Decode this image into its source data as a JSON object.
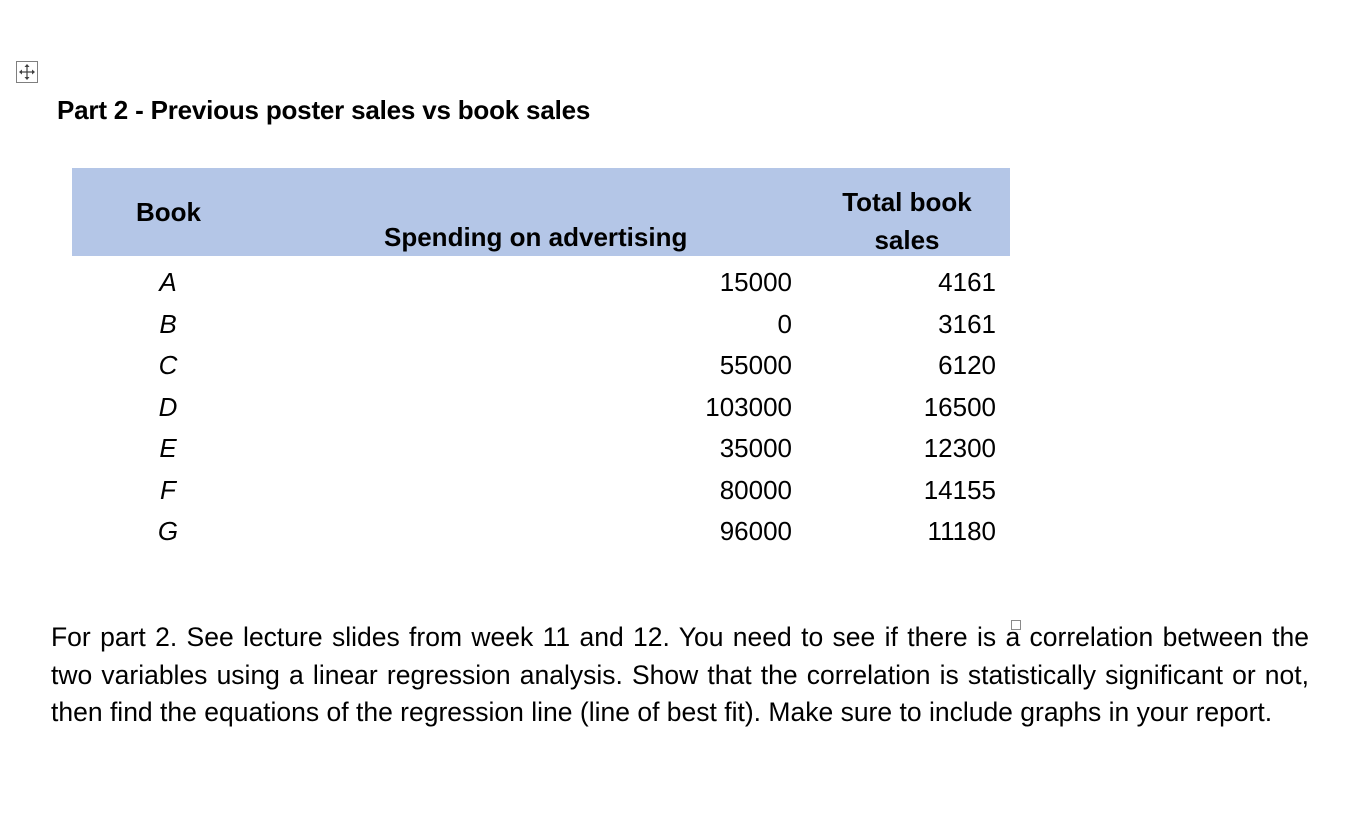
{
  "section": {
    "heading": "Part 2 - Previous poster sales vs book sales"
  },
  "table": {
    "headers": {
      "book": "Book",
      "spending": "Spending on advertising",
      "total": "Total book sales"
    },
    "rows": [
      {
        "book": "A",
        "spending": "15000",
        "total": "4161"
      },
      {
        "book": "B",
        "spending": "0",
        "total": "3161"
      },
      {
        "book": "C",
        "spending": "55000",
        "total": "6120"
      },
      {
        "book": "D",
        "spending": "103000",
        "total": "16500"
      },
      {
        "book": "E",
        "spending": "35000",
        "total": "12300"
      },
      {
        "book": "F",
        "spending": "80000",
        "total": "14155"
      },
      {
        "book": "G",
        "spending": "96000",
        "total": "11180"
      }
    ],
    "header_color": "#b4c6e7"
  },
  "instructions": {
    "text": "For part 2. See lecture slides from week 11 and 12. You need to see if there is a correlation between the two variables using a linear regression analysis. Show that the correlation is statistically significant or not, then find the equations of the regression line (line of best fit). Make sure to include graphs in your report."
  },
  "icons": {
    "table_handle": "move-icon",
    "anchor": "anchor-icon"
  }
}
